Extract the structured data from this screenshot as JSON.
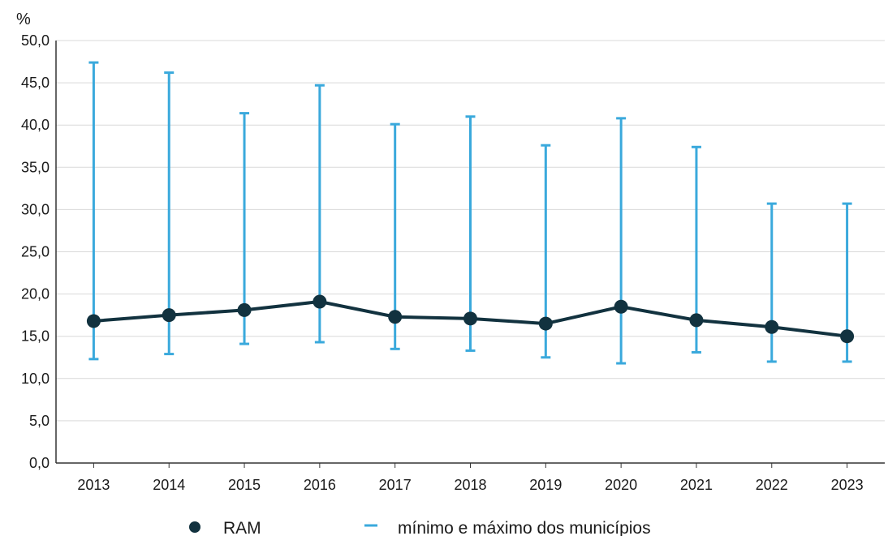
{
  "chart_data": {
    "type": "line",
    "y_unit": "%",
    "categories": [
      "2013",
      "2014",
      "2015",
      "2016",
      "2017",
      "2018",
      "2019",
      "2020",
      "2021",
      "2022",
      "2023"
    ],
    "series": [
      {
        "name": "RAM",
        "values": [
          16.8,
          17.5,
          18.1,
          19.1,
          17.3,
          17.1,
          16.5,
          18.5,
          16.9,
          16.1,
          15.0
        ]
      }
    ],
    "range_series": {
      "name": "mínimo e máximo dos municípios",
      "min": [
        12.3,
        12.9,
        14.1,
        14.3,
        13.5,
        13.3,
        12.5,
        11.8,
        13.1,
        12.0,
        12.0
      ],
      "max": [
        47.4,
        46.2,
        41.4,
        44.7,
        40.1,
        41.0,
        37.6,
        40.8,
        37.4,
        30.7,
        30.7
      ]
    },
    "y_ticks": [
      "0,0",
      "5,0",
      "10,0",
      "15,0",
      "20,0",
      "25,0",
      "30,0",
      "35,0",
      "40,0",
      "45,0",
      "50,0"
    ],
    "ylim": [
      0,
      50
    ],
    "grid": true,
    "legend_position": "bottom",
    "colors": {
      "line": "#12323f",
      "range": "#3aa9dc",
      "grid": "#d9d9d9",
      "axis": "#333333"
    }
  }
}
